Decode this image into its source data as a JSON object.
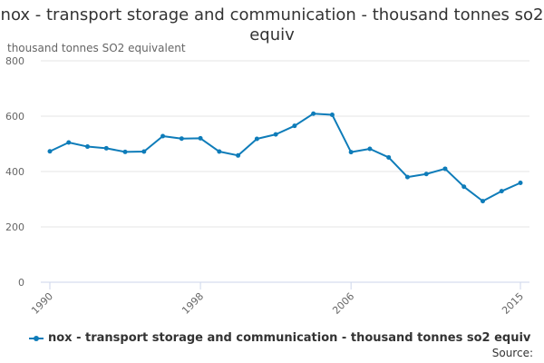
{
  "chart_data": {
    "type": "line",
    "title": "nox - transport storage and communication - thousand tonnes so2 equiv",
    "xlabel": "",
    "ylabel": "thousand tonnes SO2 equivalent",
    "ylim": [
      0,
      800
    ],
    "yticks": [
      0,
      200,
      400,
      600,
      800
    ],
    "xlim": [
      1990,
      2015
    ],
    "xticks": [
      1990,
      1998,
      2006,
      2015
    ],
    "x": [
      1990,
      1991,
      1992,
      1993,
      1994,
      1995,
      1996,
      1997,
      1998,
      1999,
      2000,
      2001,
      2002,
      2003,
      2004,
      2005,
      2006,
      2007,
      2008,
      2009,
      2010,
      2011,
      2012,
      2013,
      2014,
      2015
    ],
    "series": [
      {
        "name": "nox - transport storage and communication - thousand tonnes so2 equiv",
        "color": "#0e7cb9",
        "values": [
          473,
          505,
          490,
          484,
          471,
          472,
          528,
          519,
          520,
          472,
          458,
          518,
          534,
          565,
          609,
          605,
          470,
          482,
          451,
          380,
          391,
          410,
          345,
          293,
          329,
          359
        ]
      }
    ],
    "grid": true,
    "legend_position": "bottom-left",
    "source": "Source:"
  }
}
